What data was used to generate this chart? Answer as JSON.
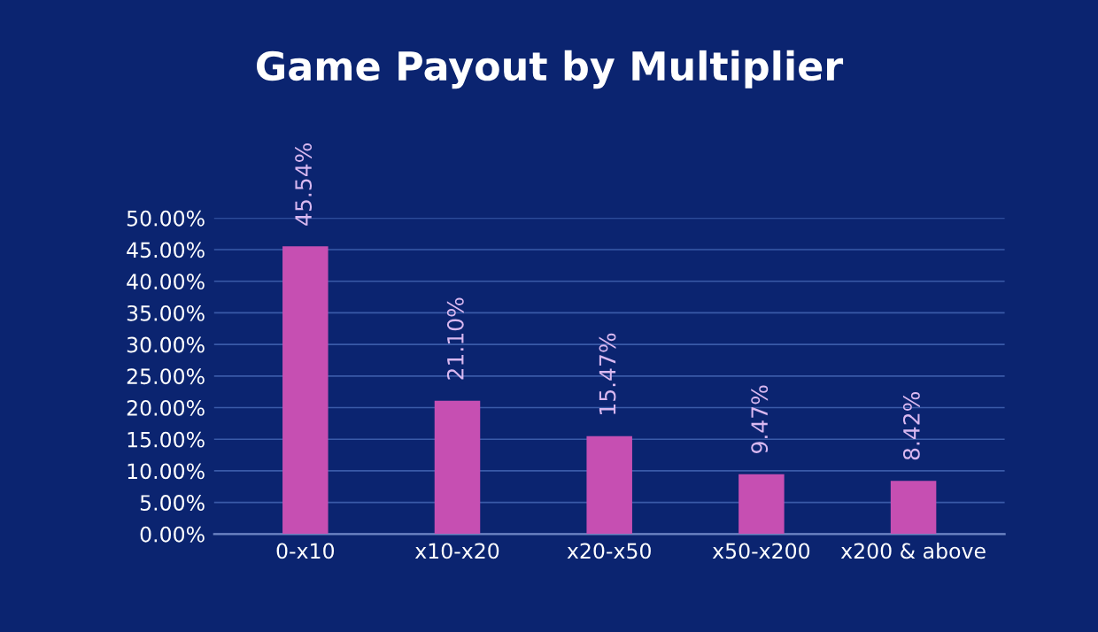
{
  "chart_data": {
    "type": "bar",
    "title": "Game Payout by Multiplier",
    "categories": [
      "0-x10",
      "x10-x20",
      "x20-x50",
      "x50-x200",
      "x200 & above"
    ],
    "values": [
      45.54,
      21.1,
      15.47,
      9.47,
      8.42
    ],
    "value_labels": [
      "45.54%",
      "21.10%",
      "15.47%",
      "9.47%",
      "8.42%"
    ],
    "color": "#c64fb2",
    "ylim": [
      0,
      50
    ],
    "yticks": [
      {
        "value": 0,
        "label": "0.00%"
      },
      {
        "value": 5,
        "label": "5.00%"
      },
      {
        "value": 10,
        "label": "10.00%"
      },
      {
        "value": 15,
        "label": "15.00%"
      },
      {
        "value": 20,
        "label": "20.00%"
      },
      {
        "value": 25,
        "label": "25.00%"
      },
      {
        "value": 30,
        "label": "30.00%"
      },
      {
        "value": 35,
        "label": "35.00%"
      },
      {
        "value": 40,
        "label": "40.00%"
      },
      {
        "value": 45,
        "label": "45.00%"
      },
      {
        "value": 50,
        "label": "50.00%"
      }
    ],
    "grid": "y"
  }
}
